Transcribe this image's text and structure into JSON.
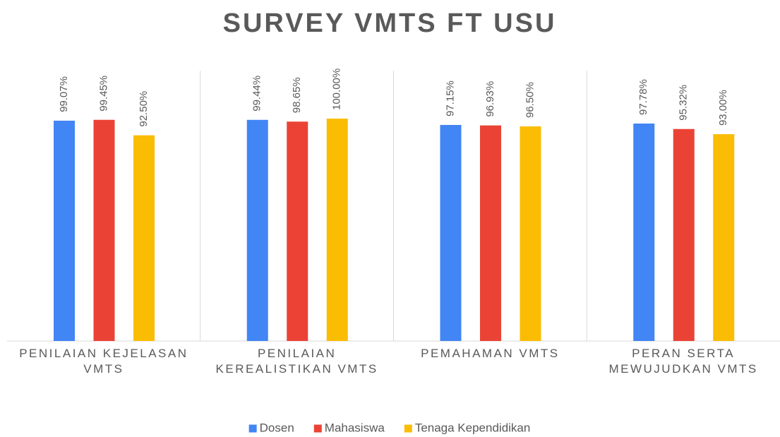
{
  "chart_data": {
    "type": "bar",
    "title": "SURVEY VMTS FT USU",
    "categories": [
      "PENILAIAN KEJELASAN VMTS",
      "PENILAIAN KEREALISTIKAN VMTS",
      "PEMAHAMAN VMTS",
      "PERAN SERTA MEWUJUDKAN VMTS"
    ],
    "series": [
      {
        "name": "Dosen",
        "color": "#4285f4",
        "values": [
          99.07,
          99.44,
          97.15,
          97.78
        ],
        "value_labels": [
          "99.07%",
          "99.44%",
          "97.15%",
          "97.78%"
        ]
      },
      {
        "name": "Mahasiswa",
        "color": "#ea4335",
        "values": [
          99.45,
          98.65,
          96.93,
          95.32
        ],
        "value_labels": [
          "99.45%",
          "98.65%",
          "96.93%",
          "95.32%"
        ]
      },
      {
        "name": "Tenaga Kependidikan",
        "color": "#fbbc04",
        "values": [
          92.5,
          100,
          96.5,
          93
        ],
        "value_labels": [
          "92.50%",
          "100.00%",
          "96.50%",
          "93.00%"
        ]
      }
    ],
    "ylim": [
      0,
      100
    ],
    "legend": "bottom"
  }
}
